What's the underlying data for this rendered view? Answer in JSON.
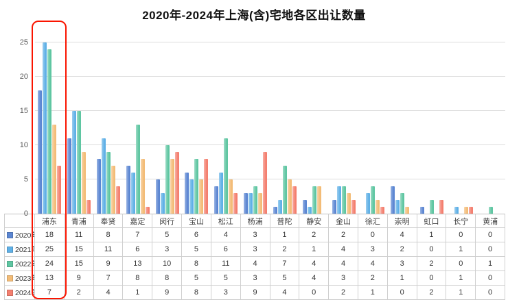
{
  "title": "2020年-2024年上海(含)宅地各区出让数量",
  "chart_data": {
    "type": "bar",
    "title": "2020年-2024年上海(含)宅地各区出让数量",
    "categories": [
      "浦东",
      "青浦",
      "奉贤",
      "嘉定",
      "闵行",
      "宝山",
      "松江",
      "杨浦",
      "普陀",
      "静安",
      "金山",
      "徐汇",
      "崇明",
      "虹口",
      "长宁",
      "黄浦"
    ],
    "series": [
      {
        "name": "2020年",
        "color": "#5b86d2",
        "values": [
          18,
          11,
          8,
          7,
          5,
          6,
          4,
          3,
          1,
          2,
          2,
          0,
          4,
          1,
          0,
          0
        ]
      },
      {
        "name": "2021年",
        "color": "#5fb0e6",
        "values": [
          25,
          15,
          11,
          6,
          3,
          5,
          6,
          3,
          2,
          1,
          4,
          3,
          2,
          0,
          1,
          0
        ]
      },
      {
        "name": "2022年",
        "color": "#5fc6a2",
        "values": [
          24,
          15,
          9,
          13,
          10,
          8,
          11,
          4,
          7,
          4,
          4,
          4,
          3,
          2,
          0,
          1
        ]
      },
      {
        "name": "2023年",
        "color": "#f3bc77",
        "values": [
          13,
          9,
          7,
          8,
          8,
          5,
          5,
          3,
          5,
          4,
          3,
          2,
          1,
          0,
          1,
          0
        ]
      },
      {
        "name": "2024年",
        "color": "#f47f6f",
        "values": [
          7,
          2,
          4,
          1,
          9,
          8,
          3,
          9,
          4,
          0,
          2,
          1,
          0,
          2,
          1,
          0
        ]
      }
    ],
    "ylim": [
      0,
      25
    ],
    "yticks": [
      0,
      5,
      10,
      15,
      20,
      25
    ],
    "grid": true,
    "data_table": true,
    "legend_position": "data-table-rows"
  },
  "annotation": {
    "type": "highlight-box",
    "target_category": "浦东",
    "color": "#fa1400"
  }
}
